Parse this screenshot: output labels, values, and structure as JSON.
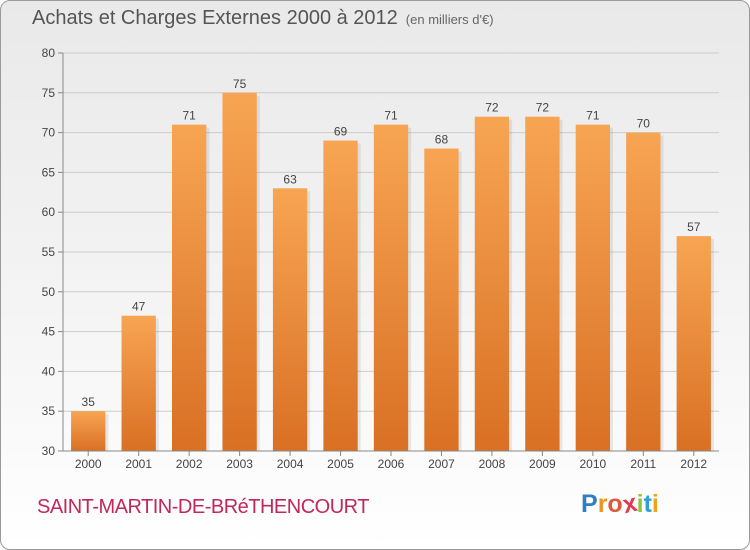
{
  "header": {
    "title": "Achats et Charges Externes 2000 à 2012",
    "unit": "(en milliers d'€)"
  },
  "footer": {
    "commune": "SAINT-MARTIN-DE-BRéTHENCOURT",
    "logo_letters": [
      {
        "ch": "P",
        "color": "#2f7fc4"
      },
      {
        "ch": "r",
        "color": "#e89a1c"
      },
      {
        "ch": "o",
        "color": "#e0573a"
      },
      {
        "ch": "x",
        "color": "#e23a4e"
      },
      {
        "ch": "i",
        "color": "#8cc63f"
      },
      {
        "ch": "t",
        "color": "#2f9fd8"
      },
      {
        "ch": "i",
        "color": "#f0a21a"
      }
    ]
  },
  "colors": {
    "bar_top": "#f7a553",
    "bar_bottom": "#d97024",
    "axis": "#888888",
    "grid": "#cccccc"
  },
  "chart_data": {
    "type": "bar",
    "categories": [
      "2000",
      "2001",
      "2002",
      "2003",
      "2004",
      "2005",
      "2006",
      "2007",
      "2008",
      "2009",
      "2010",
      "2011",
      "2012"
    ],
    "values": [
      35,
      47,
      71,
      75,
      63,
      69,
      71,
      68,
      72,
      72,
      71,
      70,
      57
    ],
    "ylim": [
      30,
      80
    ],
    "yticks": [
      30,
      35,
      40,
      45,
      50,
      55,
      60,
      65,
      70,
      75,
      80
    ],
    "grid": true
  }
}
